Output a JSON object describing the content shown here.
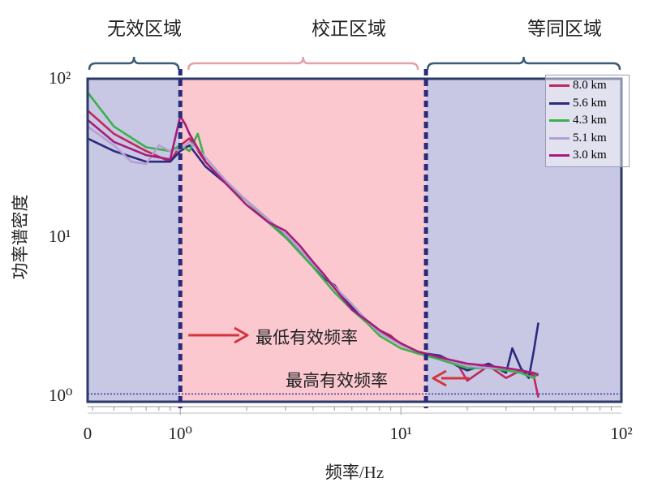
{
  "regions": {
    "invalid": "无效区域",
    "correction": "校正区域",
    "equivalent": "等同区域"
  },
  "annotations": {
    "min_freq": "最低有效频率",
    "max_freq": "最高有效频率"
  },
  "colors": {
    "invalid_fill": "#c8c8e4",
    "correction_fill": "#fbc8d0",
    "equivalent_fill": "#c8c8e4",
    "boundary_line": "#2a2a7a",
    "arrow": "#d4333b",
    "bracket_left": "#3c5a78",
    "bracket_mid": "#e3a1aa",
    "bracket_right": "#3c5a78"
  },
  "chart_data": {
    "type": "line",
    "xlabel": "频率/Hz",
    "ylabel": "功率谱密度",
    "x_scale": "log",
    "y_scale": "log",
    "xlim": [
      0.38,
      100
    ],
    "ylim": [
      0.92,
      100
    ],
    "x_ticks": [
      {
        "value": 0.38,
        "label": "0"
      },
      {
        "value": 1,
        "label": "10⁰"
      },
      {
        "value": 10,
        "label": "10¹"
      },
      {
        "value": 100,
        "label": "10²"
      }
    ],
    "y_ticks": [
      {
        "value": 1,
        "label": "10⁰"
      },
      {
        "value": 10,
        "label": "10¹"
      },
      {
        "value": 100,
        "label": "10²"
      }
    ],
    "boundaries": [
      {
        "name": "min_effective_freq",
        "value": 1.0
      },
      {
        "name": "max_effective_freq",
        "value": 13
      }
    ],
    "reference_line_y": 1.03,
    "series": [
      {
        "name": "8.0 km",
        "color": "#c0285e",
        "x": [
          0.38,
          0.5,
          0.7,
          0.9,
          1.0,
          1.1,
          1.3,
          1.6,
          2,
          2.5,
          3,
          3.5,
          4,
          5,
          6,
          7,
          8,
          9,
          10,
          12,
          13,
          15,
          18,
          20,
          25,
          30,
          35,
          40,
          42
        ],
        "y": [
          63,
          45,
          35,
          30,
          38,
          42,
          30,
          22,
          17,
          12.5,
          10,
          8.2,
          6.8,
          4.8,
          3.7,
          3.0,
          2.6,
          2.4,
          2.1,
          1.9,
          1.85,
          1.8,
          1.6,
          1.25,
          1.55,
          1.3,
          1.45,
          1.35,
          0.98
        ]
      },
      {
        "name": "5.6 km",
        "color": "#2b2a80",
        "x": [
          0.38,
          0.5,
          0.7,
          0.9,
          1.0,
          1.1,
          1.3,
          1.6,
          2,
          2.5,
          3,
          3.5,
          4,
          4.6,
          5,
          5.5,
          6,
          7,
          8,
          9,
          10,
          12,
          13,
          15,
          18,
          20,
          25,
          30,
          32,
          35,
          38,
          40,
          42
        ],
        "y": [
          42,
          35,
          30,
          30,
          35,
          38,
          28,
          22,
          17,
          13,
          10,
          8.3,
          6.8,
          5.4,
          5.0,
          4.2,
          3.6,
          3.0,
          2.6,
          2.35,
          2.1,
          1.9,
          1.85,
          1.8,
          1.55,
          1.45,
          1.6,
          1.4,
          2.0,
          1.5,
          1.3,
          1.9,
          2.9
        ]
      },
      {
        "name": "4.3 km",
        "color": "#3cb04a",
        "x": [
          0.38,
          0.5,
          0.7,
          0.9,
          1.0,
          1.1,
          1.2,
          1.3,
          1.6,
          2,
          2.5,
          3,
          4,
          5,
          6,
          7,
          8,
          10,
          12,
          13,
          15,
          20,
          25,
          30,
          35,
          40,
          42
        ],
        "y": [
          82,
          50,
          37,
          35,
          38,
          35,
          45,
          30,
          22,
          17,
          12.5,
          10,
          6.5,
          4.5,
          3.5,
          2.9,
          2.4,
          2.0,
          1.85,
          1.8,
          1.7,
          1.5,
          1.5,
          1.45,
          1.4,
          1.3,
          1.4
        ]
      },
      {
        "name": "5.1 km",
        "color": "#b4a0d0",
        "x": [
          0.38,
          0.5,
          0.6,
          0.7,
          0.8,
          0.9,
          1.0,
          1.1,
          1.3,
          1.6,
          2,
          2.5,
          3,
          4,
          5,
          6,
          7,
          8,
          10,
          12,
          13,
          15,
          20,
          25,
          30,
          35,
          40,
          42
        ],
        "y": [
          50,
          38,
          30,
          29,
          38,
          35,
          36,
          40,
          32,
          23,
          17,
          13,
          10.5,
          6.8,
          4.9,
          3.8,
          3.0,
          2.5,
          2.1,
          1.9,
          1.85,
          1.75,
          1.55,
          1.5,
          1.5,
          1.45,
          1.4,
          1.4
        ]
      },
      {
        "name": "3.0 km",
        "color": "#a61c7c",
        "x": [
          0.38,
          0.5,
          0.7,
          0.9,
          1.0,
          1.05,
          1.1,
          1.3,
          1.6,
          2,
          2.5,
          3,
          3.5,
          4,
          4.5,
          5,
          6,
          7,
          8,
          10,
          12,
          13,
          15,
          20,
          25,
          30,
          35,
          40,
          42
        ],
        "y": [
          55,
          40,
          33,
          31,
          58,
          52,
          45,
          30,
          22,
          16,
          12.5,
          11,
          8.8,
          7.0,
          5.8,
          4.8,
          3.5,
          3.0,
          2.6,
          2.15,
          1.9,
          1.85,
          1.75,
          1.6,
          1.55,
          1.5,
          1.45,
          1.4,
          1.35
        ]
      }
    ]
  }
}
